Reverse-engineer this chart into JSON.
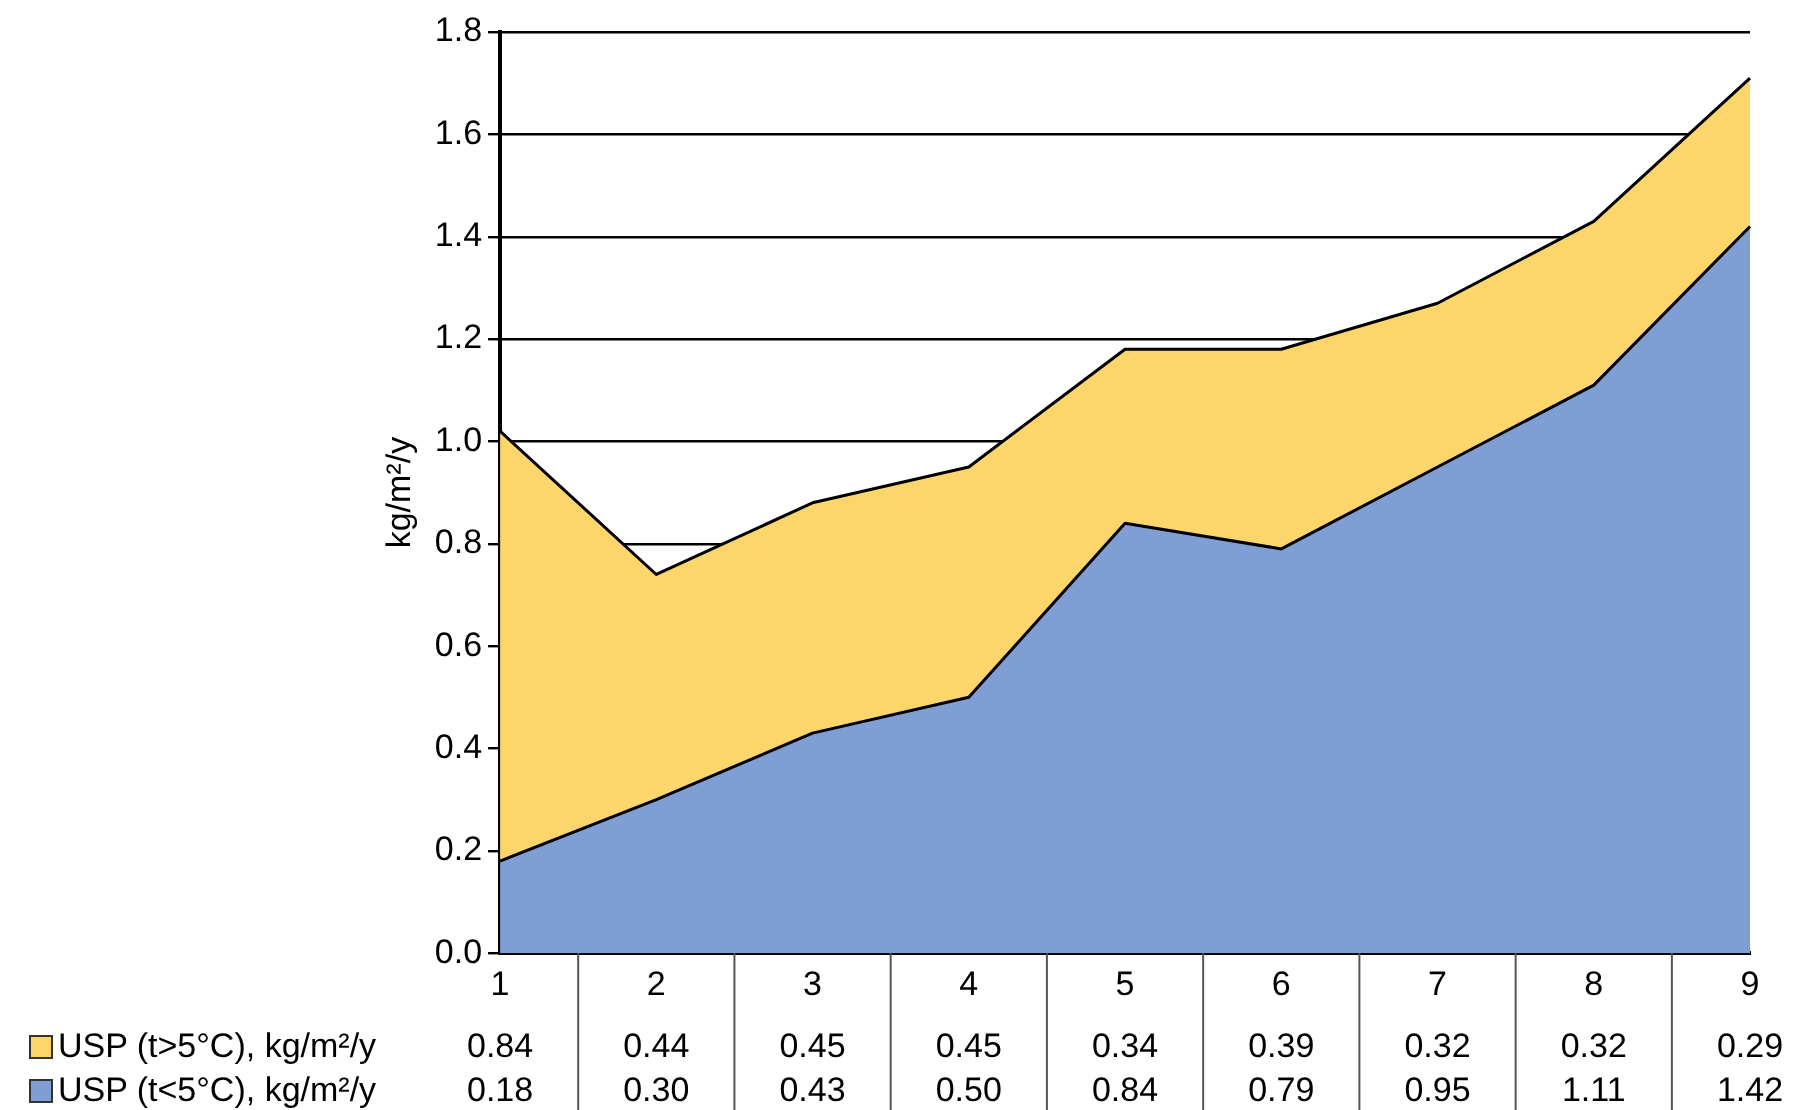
{
  "chart_data": {
    "type": "area",
    "stacked": true,
    "ylabel": "kg/m²/y",
    "categories": [
      "1",
      "2",
      "3",
      "4",
      "5",
      "6",
      "7",
      "8",
      "9"
    ],
    "series": [
      {
        "name": "USP (t<5°C), kg/m²/y",
        "color": "#7f9fd4",
        "values": [
          0.18,
          0.3,
          0.43,
          0.5,
          0.84,
          0.79,
          0.95,
          1.11,
          1.42
        ],
        "value_labels": [
          "0.18",
          "0.30",
          "0.43",
          "0.50",
          "0.84",
          "0.79",
          "0.95",
          "1.11",
          "1.42"
        ]
      },
      {
        "name": "USP (t>5°C), kg/m²/y",
        "color": "#fcd66b",
        "values": [
          0.84,
          0.44,
          0.45,
          0.45,
          0.34,
          0.39,
          0.32,
          0.32,
          0.29
        ],
        "value_labels": [
          "0.84",
          "0.44",
          "0.45",
          "0.45",
          "0.34",
          "0.39",
          "0.32",
          "0.32",
          "0.29"
        ]
      }
    ],
    "ylim": [
      0,
      1.8
    ],
    "yticks": [
      {
        "value": 0,
        "label": "0.0"
      },
      0.2,
      0.4,
      0.6,
      0.8,
      {
        "value": 1,
        "label": "1.0"
      },
      1.2,
      1.4,
      1.6,
      1.8
    ],
    "grid": "y",
    "legend": "bottom"
  }
}
